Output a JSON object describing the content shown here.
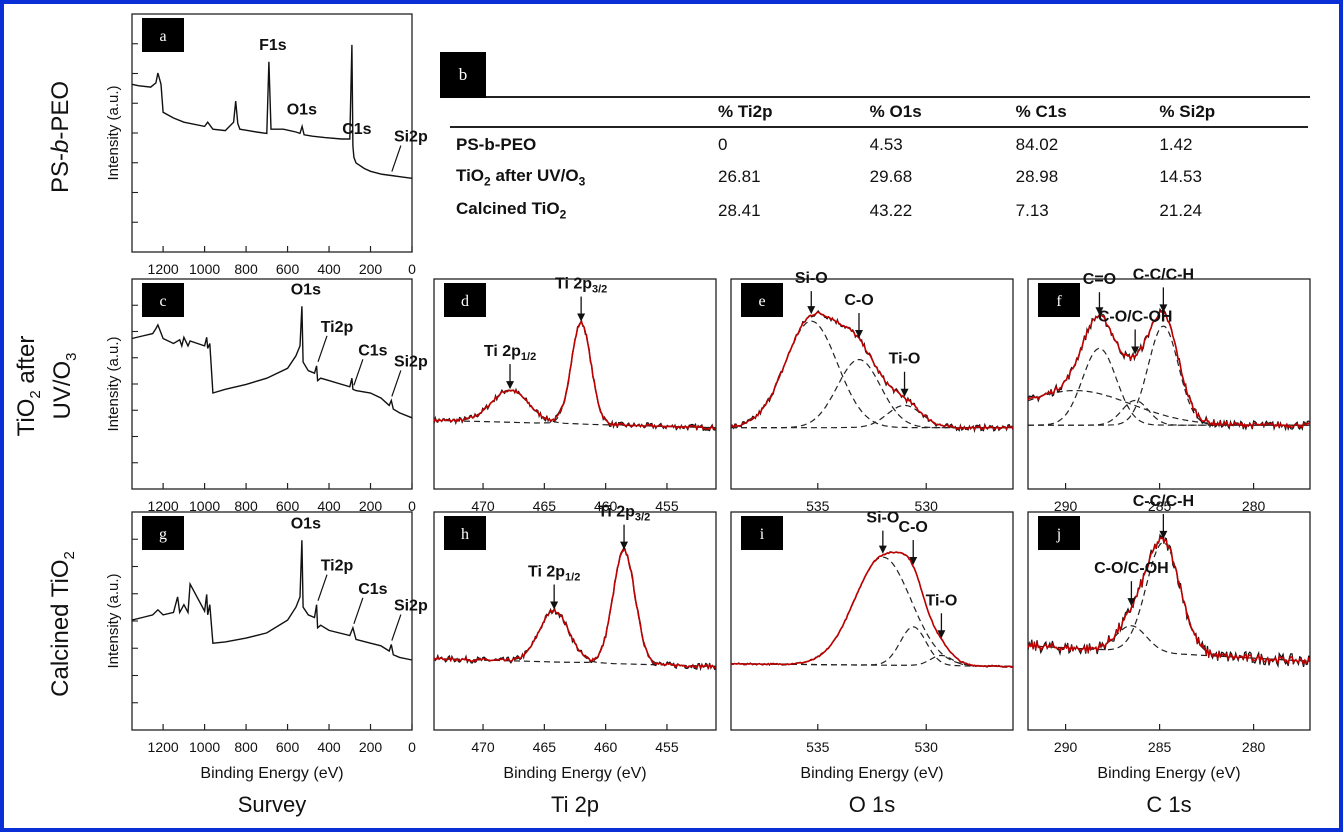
{
  "row_titles": [
    "PS-b-PEO",
    "TiO2 after UV/O3",
    "Calcined TiO2"
  ],
  "column_titles": [
    "Survey",
    "Ti 2p",
    "O 1s",
    "C 1s"
  ],
  "axis_labels": {
    "x": "Binding Energy (eV)",
    "y": "Intensity (a.u.)"
  },
  "colors": {
    "frame": "#0b2fd6",
    "fit": "#c00000",
    "data": "#111111",
    "component": "#222222"
  },
  "table": {
    "tag": "b",
    "headers": [
      "",
      "% Ti2p",
      "% O1s",
      "% C1s",
      "% Si2p"
    ],
    "rows": [
      [
        "PS-b-PEO",
        "0",
        "4.53",
        "84.02",
        "1.42"
      ],
      [
        "TiO2 after UV/O3",
        "26.81",
        "29.68",
        "28.98",
        "14.53"
      ],
      [
        "Calcined TiO2",
        "28.41",
        "43.22",
        "7.13",
        "21.24"
      ]
    ]
  },
  "chart_data": [
    {
      "tag": "a",
      "type": "line",
      "region": "Survey",
      "sample": "PS-b-PEO",
      "xlabel": "",
      "ylabel": "Intensity (a.u.)",
      "xlim": [
        1350,
        0
      ],
      "xticks": [
        1200,
        1000,
        800,
        600,
        400,
        200,
        0
      ],
      "series": [
        {
          "x": [
            1350,
            1320,
            1260,
            1235,
            1225,
            1210,
            1200,
            1150,
            1100,
            1000,
            985,
            960,
            900,
            860,
            850,
            840,
            830,
            790,
            750,
            700,
            690,
            680,
            620,
            560,
            540,
            530,
            520,
            480,
            420,
            340,
            300,
            290,
            285,
            280,
            270,
            230,
            200,
            150,
            100,
            50,
            0
          ],
          "y": [
            72,
            71,
            70,
            73,
            80,
            72,
            52,
            48,
            45,
            42,
            45,
            40,
            39,
            45,
            60,
            44,
            40,
            39,
            38,
            37,
            88,
            40,
            40,
            38,
            37,
            42,
            36,
            35,
            34,
            33,
            33,
            100,
            28,
            20,
            16,
            12,
            10,
            8,
            7,
            6,
            5
          ]
        }
      ],
      "annotations": [
        {
          "text": "F1s",
          "x": 690
        },
        {
          "text": "O1s",
          "x": 531
        },
        {
          "text": "C1s",
          "x": 285
        },
        {
          "text": "Si2p",
          "x": 102
        }
      ]
    },
    {
      "tag": "c",
      "type": "line",
      "region": "Survey",
      "sample": "TiO2 after UV/O3",
      "xlabel": "",
      "ylabel": "Intensity (a.u.)",
      "xlim": [
        1350,
        0
      ],
      "xticks": [
        1200,
        1000,
        800,
        600,
        400,
        200,
        0
      ],
      "series": [
        {
          "x": [
            1350,
            1300,
            1250,
            1235,
            1225,
            1200,
            1150,
            1120,
            1110,
            1100,
            1080,
            1070,
            1000,
            990,
            985,
            975,
            960,
            900,
            800,
            700,
            600,
            560,
            540,
            531,
            525,
            500,
            470,
            460,
            455,
            440,
            400,
            300,
            290,
            285,
            270,
            200,
            150,
            110,
            100,
            90,
            60,
            0
          ],
          "y": [
            74,
            76,
            78,
            82,
            85,
            74,
            70,
            73,
            68,
            75,
            68,
            72,
            68,
            75,
            66,
            70,
            30,
            33,
            37,
            42,
            50,
            60,
            68,
            100,
            55,
            48,
            46,
            52,
            40,
            42,
            40,
            35,
            42,
            33,
            32,
            30,
            26,
            20,
            24,
            17,
            14,
            10
          ]
        }
      ],
      "annotations": [
        {
          "text": "O1s",
          "x": 531
        },
        {
          "text": "Ti2p",
          "x": 458
        },
        {
          "text": "C1s",
          "x": 285
        },
        {
          "text": "Si2p",
          "x": 102
        }
      ]
    },
    {
      "tag": "g",
      "type": "line",
      "region": "Survey",
      "sample": "Calcined TiO2",
      "xlabel": "Binding Energy (eV)",
      "ylabel": "Intensity (a.u.)",
      "xlim": [
        1350,
        0
      ],
      "xticks": [
        1200,
        1000,
        800,
        600,
        400,
        200,
        0
      ],
      "series": [
        {
          "x": [
            1350,
            1300,
            1250,
            1225,
            1200,
            1150,
            1130,
            1120,
            1100,
            1080,
            1070,
            1000,
            990,
            985,
            975,
            960,
            900,
            800,
            700,
            600,
            560,
            540,
            531,
            525,
            500,
            470,
            460,
            455,
            440,
            400,
            300,
            285,
            270,
            200,
            150,
            110,
            100,
            90,
            60,
            0
          ],
          "y": [
            38,
            40,
            42,
            46,
            42,
            44,
            56,
            44,
            50,
            44,
            66,
            45,
            58,
            42,
            50,
            20,
            21,
            24,
            28,
            38,
            48,
            56,
            100,
            48,
            42,
            40,
            50,
            32,
            34,
            30,
            26,
            32,
            23,
            20,
            18,
            14,
            19,
            11,
            9,
            7
          ]
        }
      ],
      "annotations": [
        {
          "text": "O1s",
          "x": 531
        },
        {
          "text": "Ti2p",
          "x": 458
        },
        {
          "text": "C1s",
          "x": 285
        },
        {
          "text": "Si2p",
          "x": 102
        }
      ]
    },
    {
      "tag": "d",
      "type": "line",
      "region": "Ti 2p",
      "sample": "TiO2 after UV/O3",
      "xlabel": "",
      "xlim": [
        474,
        451
      ],
      "xticks": [
        470,
        465,
        460,
        455
      ],
      "peaks": [
        {
          "label": "Ti 2p1/2",
          "label_main": "Ti 2p",
          "label_sub": "1/2",
          "center": 467.8,
          "height": 26,
          "width": 1.5
        },
        {
          "label": "Ti 2p3/2",
          "label_main": "Ti 2p",
          "label_sub": "3/2",
          "center": 462.0,
          "height": 82,
          "width": 0.8
        }
      ],
      "baseline": {
        "start": 8,
        "end": 2,
        "noise": 2.5
      }
    },
    {
      "tag": "h",
      "type": "line",
      "region": "Ti 2p",
      "sample": "Calcined TiO2",
      "xlabel": "Binding Energy (eV)",
      "xlim": [
        474,
        451
      ],
      "xticks": [
        470,
        465,
        460,
        455
      ],
      "peaks": [
        {
          "label": "Ti 2p1/2",
          "label_main": "Ti 2p",
          "label_sub": "1/2",
          "center": 464.2,
          "height": 40,
          "width": 1.2
        },
        {
          "label": "Ti 2p3/2",
          "label_main": "Ti 2p",
          "label_sub": "3/2",
          "center": 458.5,
          "height": 88,
          "width": 0.9
        }
      ],
      "baseline": {
        "start": 8,
        "end": 2,
        "noise": 2.5
      }
    },
    {
      "tag": "e",
      "type": "line",
      "region": "O 1s",
      "sample": "TiO2 after UV/O3",
      "xlabel": "",
      "xlim": [
        539,
        526
      ],
      "xticks": [
        535,
        530
      ],
      "peaks": [
        {
          "label": "Si-O",
          "center": 535.3,
          "height": 86,
          "width": 1.2
        },
        {
          "label": "C-O",
          "center": 533.1,
          "height": 55,
          "width": 1.0
        },
        {
          "label": "Ti-O",
          "center": 531.0,
          "height": 18,
          "width": 0.8
        }
      ],
      "baseline": {
        "start": 2,
        "end": 2,
        "noise": 2.5
      }
    },
    {
      "tag": "i",
      "type": "line",
      "region": "O 1s",
      "sample": "Calcined TiO2",
      "xlabel": "Binding Energy (eV)",
      "xlim": [
        539,
        526
      ],
      "xticks": [
        535,
        530
      ],
      "peaks": [
        {
          "label": "Si-O",
          "center": 532.0,
          "height": 84,
          "width": 1.3
        },
        {
          "label": "C-O",
          "center": 530.6,
          "height": 30,
          "width": 0.6
        },
        {
          "label": "Ti-O",
          "center": 529.3,
          "height": 8,
          "width": 0.5
        }
      ],
      "baseline": {
        "start": 4,
        "end": 2,
        "noise": 0.8
      }
    },
    {
      "tag": "f",
      "type": "line",
      "region": "C 1s",
      "sample": "TiO2 after UV/O3",
      "xlabel": "",
      "xlim": [
        292,
        277
      ],
      "xticks": [
        290,
        285,
        280
      ],
      "peaks": [
        {
          "label": "C=O",
          "center": 288.2,
          "height": 62,
          "width": 0.9
        },
        {
          "label": "C-C/C-H",
          "center": 284.8,
          "height": 80,
          "width": 0.8
        },
        {
          "label": "C-O/C-OH",
          "center": 286.3,
          "height": 20,
          "width": 0.7
        }
      ],
      "broad": {
        "center": 289.5,
        "height": 28,
        "width": 3.0
      },
      "baseline": {
        "start": 4,
        "end": 4,
        "noise": 3.5
      }
    },
    {
      "tag": "j",
      "type": "line",
      "region": "C 1s",
      "sample": "Calcined TiO2",
      "xlabel": "Binding Energy (eV)",
      "xlim": [
        292,
        277
      ],
      "xticks": [
        290,
        285,
        280
      ],
      "peaks": [
        {
          "label": "C-C/C-H",
          "center": 284.8,
          "height": 86,
          "width": 0.9
        },
        {
          "label": "C-O/C-OH",
          "center": 286.5,
          "height": 20,
          "width": 0.8
        }
      ],
      "baseline": {
        "start": 18,
        "end": 6,
        "noise": 5
      }
    }
  ]
}
